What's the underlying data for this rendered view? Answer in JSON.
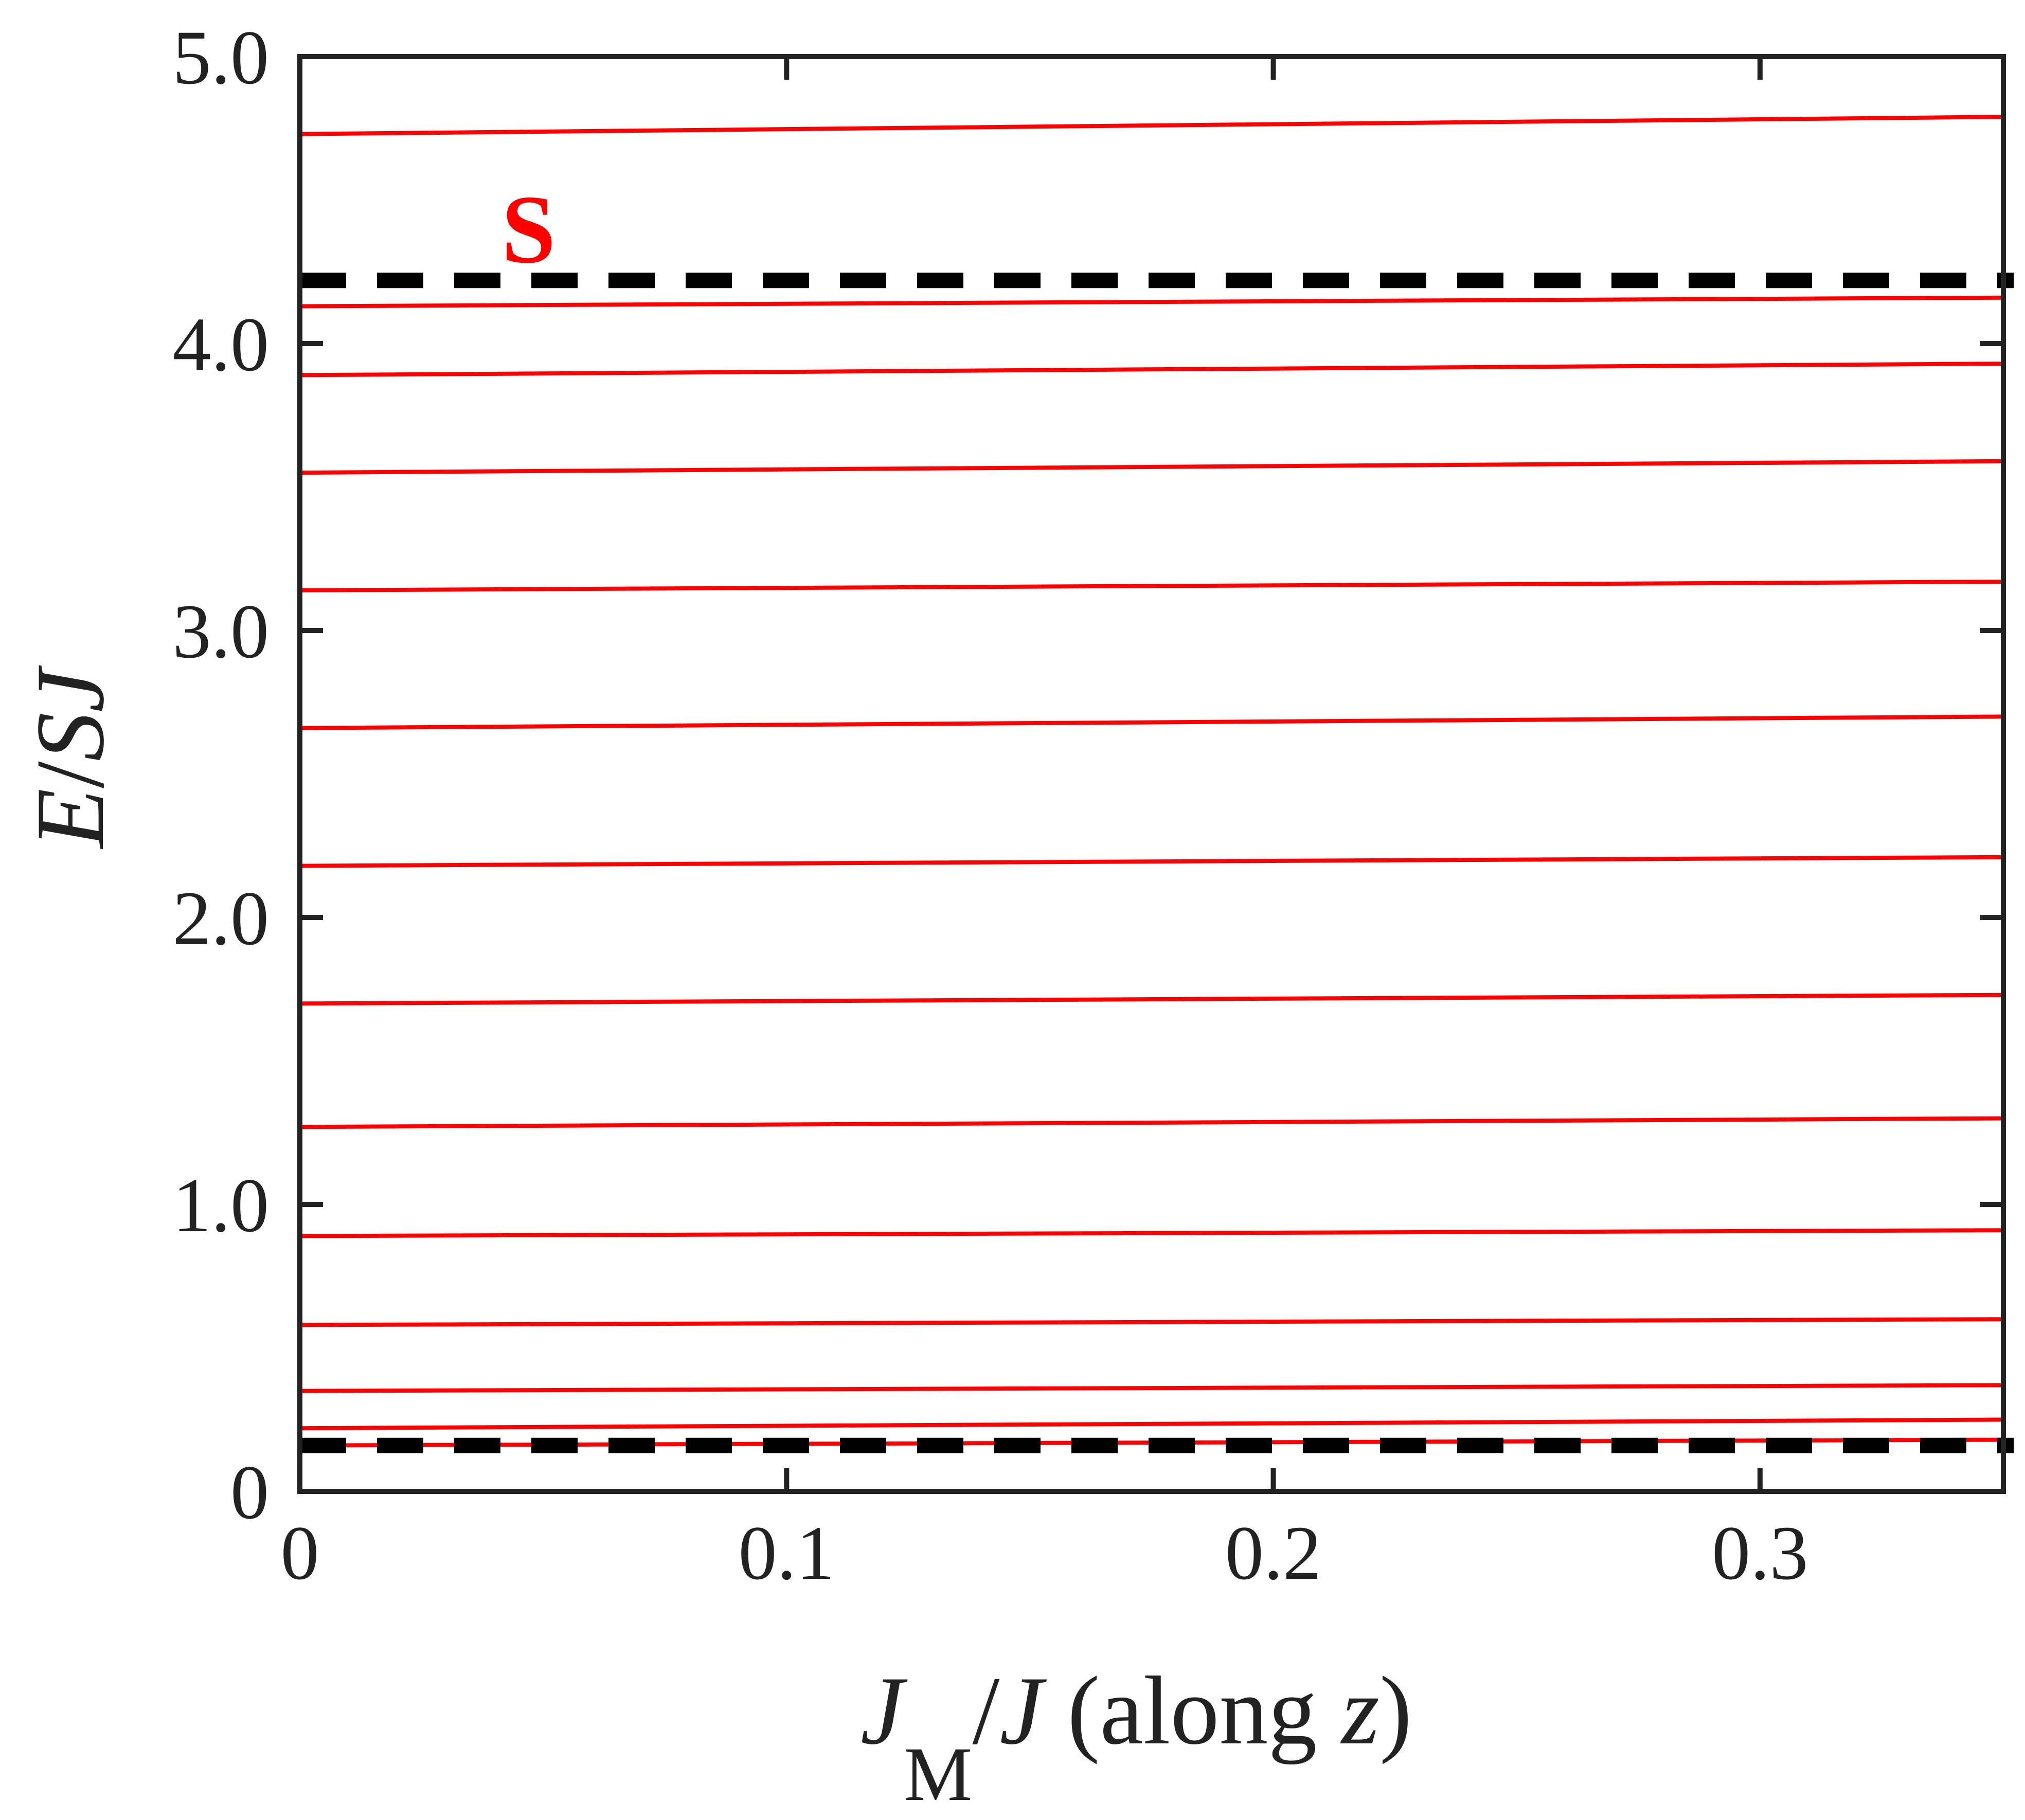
{
  "chart_data": {
    "type": "line",
    "xlim": [
      0,
      0.35
    ],
    "ylim": [
      0,
      5.0
    ],
    "x_ticks": [
      0,
      0.1,
      0.2,
      0.3
    ],
    "x_tick_labels": [
      "0",
      "0.1",
      "0.2",
      "0.3"
    ],
    "y_ticks": [
      0,
      1.0,
      2.0,
      3.0,
      4.0,
      5.0
    ],
    "y_tick_labels": [
      "0",
      "1.0",
      "2.0",
      "3.0",
      "4.0",
      "5.0"
    ],
    "xlabel": {
      "J1": "J",
      "sub": "M",
      "slash": "/",
      "J2": "J",
      "rest": " (along ",
      "z": "z",
      "close": ")"
    },
    "ylabel": {
      "E": "E",
      "slash": "/",
      "S": "S",
      "J": "J"
    },
    "grid": false,
    "line_color": "#ff0000",
    "band_edge_color": "#000000",
    "series": [
      {
        "x": [
          0,
          0.35
        ],
        "y": [
          0.16,
          0.18
        ]
      },
      {
        "x": [
          0,
          0.35
        ],
        "y": [
          0.22,
          0.25
        ]
      },
      {
        "x": [
          0,
          0.35
        ],
        "y": [
          0.35,
          0.37
        ]
      },
      {
        "x": [
          0,
          0.35
        ],
        "y": [
          0.58,
          0.6
        ]
      },
      {
        "x": [
          0,
          0.35
        ],
        "y": [
          0.89,
          0.91
        ]
      },
      {
        "x": [
          0,
          0.35
        ],
        "y": [
          1.27,
          1.3
        ]
      },
      {
        "x": [
          0,
          0.35
        ],
        "y": [
          1.7,
          1.73
        ]
      },
      {
        "x": [
          0,
          0.35
        ],
        "y": [
          2.18,
          2.21
        ]
      },
      {
        "x": [
          0,
          0.35
        ],
        "y": [
          2.66,
          2.7
        ]
      },
      {
        "x": [
          0,
          0.35
        ],
        "y": [
          3.14,
          3.17
        ]
      },
      {
        "x": [
          0,
          0.35
        ],
        "y": [
          3.55,
          3.59
        ]
      },
      {
        "x": [
          0,
          0.35
        ],
        "y": [
          3.89,
          3.93
        ]
      },
      {
        "x": [
          0,
          0.35
        ],
        "y": [
          4.13,
          4.16
        ]
      },
      {
        "x": [
          0,
          0.35
        ],
        "y": [
          4.73,
          4.79
        ]
      }
    ],
    "band_edges": [
      0.16,
      4.22
    ],
    "annotations": [
      {
        "text": "S",
        "x": 0.047,
        "y": 4.4
      }
    ]
  }
}
